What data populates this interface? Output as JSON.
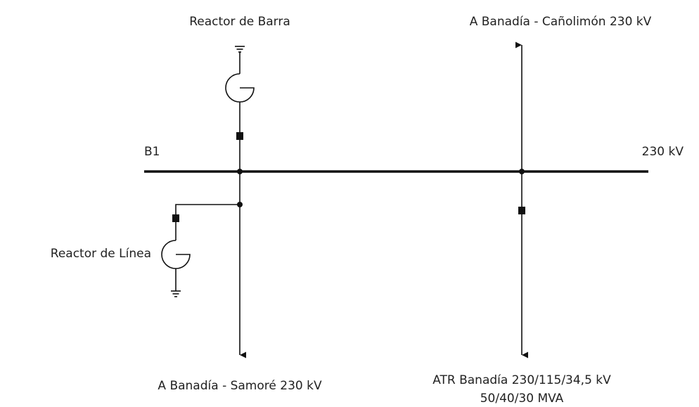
{
  "labels": {
    "reactor_barra": "Reactor de Barra",
    "line_top_right": "A Banadía - Cañolimón 230 kV",
    "bus_name": "B1",
    "bus_voltage": "230 kV",
    "reactor_linea": "Reactor de Línea",
    "line_bottom_left": "A Banadía - Samoré 230 kV",
    "transformer_line1": "ATR Banadía 230/115/34,5 kV",
    "transformer_line2": "50/40/30 MVA"
  }
}
